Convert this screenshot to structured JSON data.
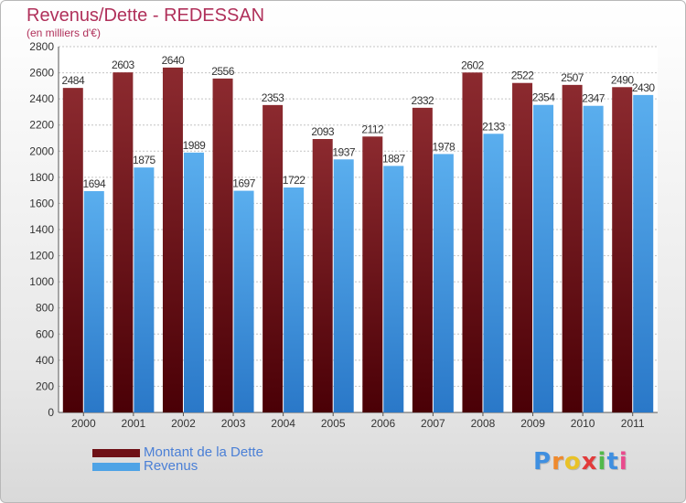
{
  "header": {
    "title": "Revenus/Dette - REDESSAN",
    "subtitle": "(en milliers d'€)"
  },
  "chart_data": {
    "type": "bar",
    "title": "Revenus/Dette - REDESSAN",
    "subtitle": "(en milliers d'€)",
    "xlabel": "",
    "ylabel": "",
    "ylim": [
      0,
      2800
    ],
    "yticks": [
      0,
      200,
      400,
      600,
      800,
      1000,
      1200,
      1400,
      1600,
      1800,
      2000,
      2200,
      2400,
      2600,
      2800
    ],
    "grid": true,
    "legend_position": "bottom-left",
    "categories": [
      "2000",
      "2001",
      "2002",
      "2003",
      "2004",
      "2005",
      "2006",
      "2007",
      "2008",
      "2009",
      "2010",
      "2011"
    ],
    "series": [
      {
        "name": "Montant de la Dette",
        "color": "#7a1a1f",
        "values": [
          2484,
          2603,
          2640,
          2556,
          2353,
          2093,
          2112,
          2332,
          2602,
          2522,
          2507,
          2490
        ]
      },
      {
        "name": "Revenus",
        "color": "#4ea3e6",
        "values": [
          1694,
          1875,
          1989,
          1697,
          1722,
          1937,
          1887,
          1978,
          2133,
          2354,
          2347,
          2430
        ]
      }
    ]
  },
  "legend": {
    "items": [
      {
        "label": "Montant de la Dette",
        "color": "#7a1a1f"
      },
      {
        "label": "Revenus",
        "color": "#4ea3e6"
      }
    ]
  },
  "logo": {
    "letters": [
      {
        "char": "P",
        "color": "#3f8fe0"
      },
      {
        "char": "r",
        "color": "#ef8a2d"
      },
      {
        "char": "o",
        "color": "#e9c227"
      },
      {
        "char": "x",
        "color": "#e23b3b"
      },
      {
        "char": "i",
        "color": "#53b94a"
      },
      {
        "char": "t",
        "color": "#3f8fe0"
      },
      {
        "char": "i",
        "color": "#e94b8d"
      }
    ]
  }
}
